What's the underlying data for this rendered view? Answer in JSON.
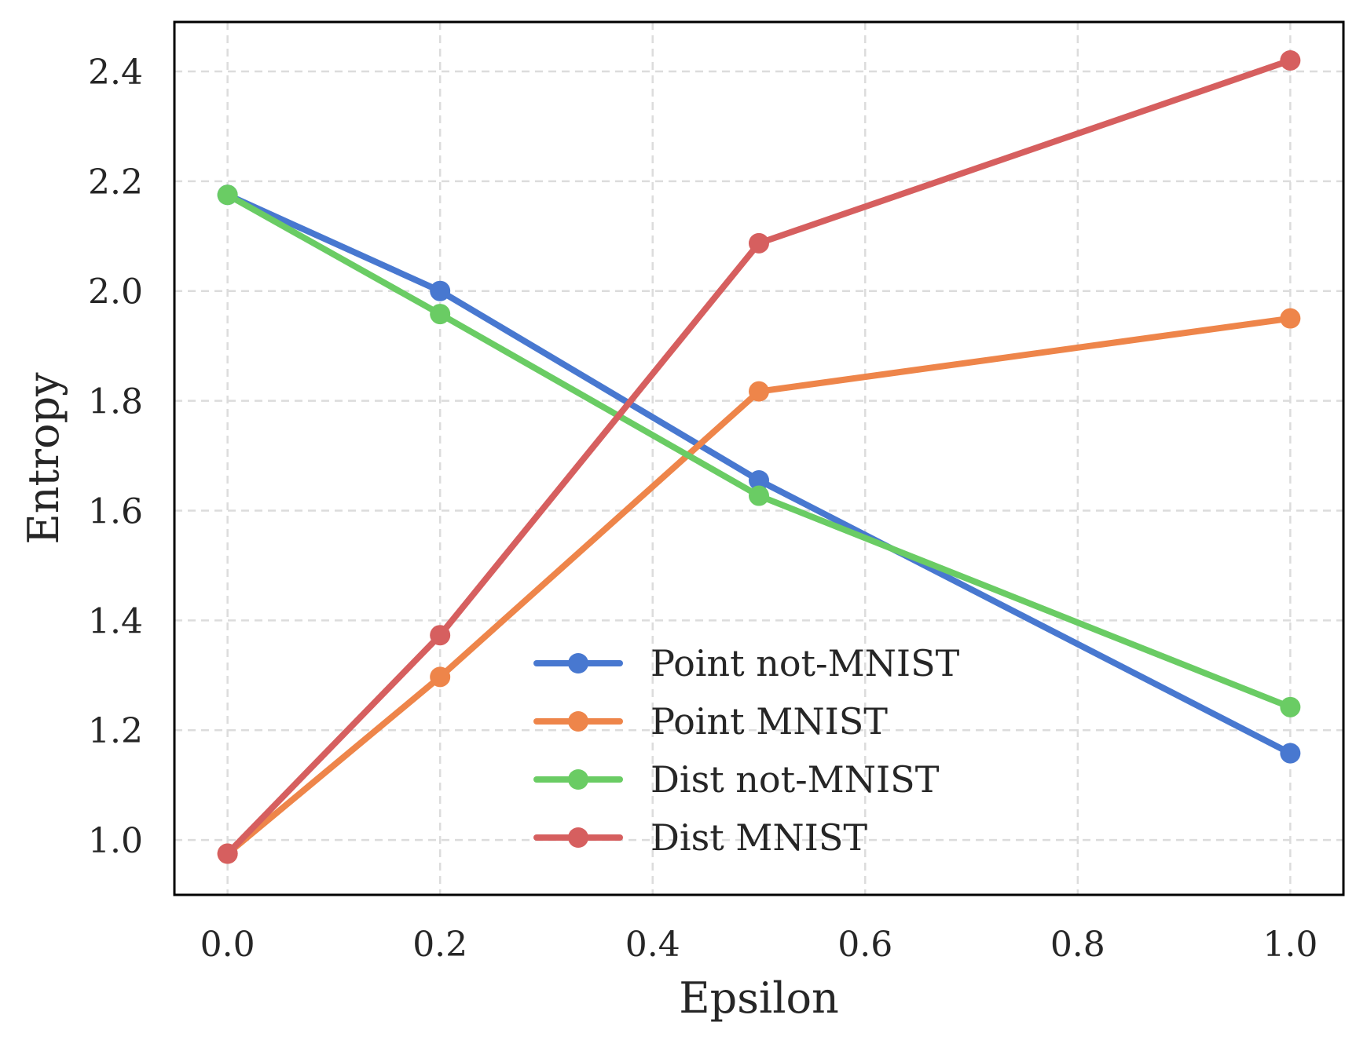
{
  "chart_data": {
    "type": "line",
    "title": "",
    "xlabel": "Epsilon",
    "ylabel": "Entropy",
    "x": [
      0.0,
      0.2,
      0.5,
      1.0
    ],
    "xlim": [
      -0.05,
      1.05
    ],
    "ylim": [
      0.9,
      2.49
    ],
    "xticks": [
      0.0,
      0.2,
      0.4,
      0.6,
      0.8,
      1.0
    ],
    "xtick_labels": [
      "0.0",
      "0.2",
      "0.4",
      "0.6",
      "0.8",
      "1.0"
    ],
    "yticks": [
      1.0,
      1.2,
      1.4,
      1.6,
      1.8,
      2.0,
      2.2,
      2.4
    ],
    "ytick_labels": [
      "1.0",
      "1.2",
      "1.4",
      "1.6",
      "1.8",
      "2.0",
      "2.2",
      "2.4"
    ],
    "grid": true,
    "legend_position": "lower-center",
    "series": [
      {
        "name": "Point not-MNIST",
        "color": "#4878d0",
        "values": [
          2.175,
          2.0,
          1.655,
          1.158
        ]
      },
      {
        "name": "Point MNIST",
        "color": "#ee854a",
        "values": [
          0.975,
          1.297,
          1.817,
          1.95
        ]
      },
      {
        "name": "Dist not-MNIST",
        "color": "#6acc64",
        "values": [
          2.175,
          1.958,
          1.627,
          1.242
        ]
      },
      {
        "name": "Dist MNIST",
        "color": "#d65f5f",
        "values": [
          0.975,
          1.373,
          2.087,
          2.42
        ]
      }
    ]
  }
}
